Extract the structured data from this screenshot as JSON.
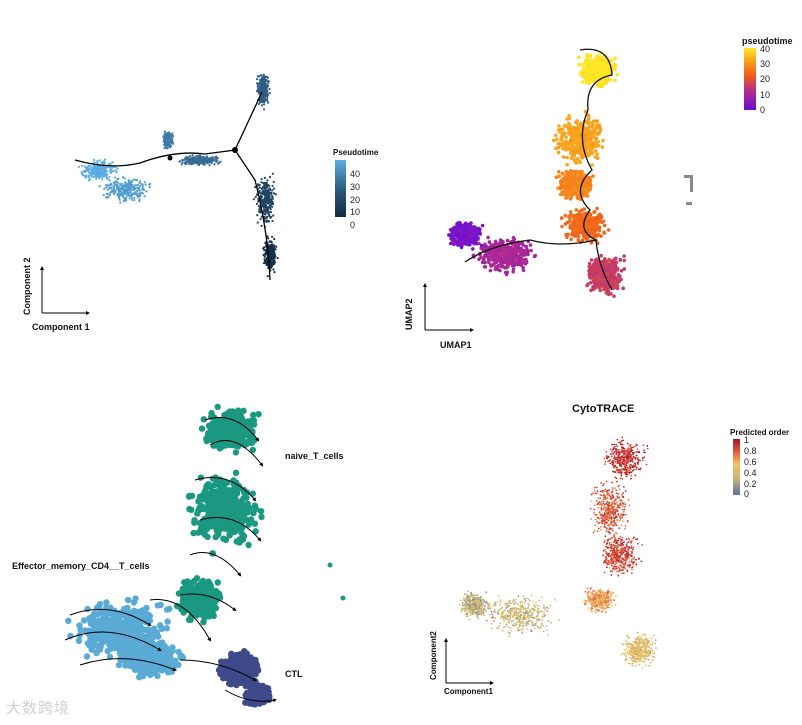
{
  "watermark": "大数跨境",
  "chart_data": [
    {
      "type": "scatter",
      "panel": "monocle-trajectory",
      "xlabel": "Component 1",
      "ylabel": "Component 2",
      "legend": {
        "title": "Pseudotime",
        "ticks": [
          "40",
          "30",
          "20",
          "10",
          "0"
        ],
        "colors": [
          "#5aaee4",
          "#2d5c82",
          "#132b43"
        ],
        "placement": "right"
      },
      "trajectory": "branched tree with three branches",
      "clusters": [
        {
          "x": 100,
          "y": 170,
          "value": 40
        },
        {
          "x": 125,
          "y": 190,
          "value": 36
        },
        {
          "x": 168,
          "y": 140,
          "value": 28
        },
        {
          "x": 200,
          "y": 160,
          "value": 24
        },
        {
          "x": 263,
          "y": 90,
          "value": 20
        },
        {
          "x": 265,
          "y": 200,
          "value": 10
        },
        {
          "x": 270,
          "y": 255,
          "value": 2
        }
      ]
    },
    {
      "type": "scatter",
      "panel": "umap-pseudotime",
      "xlabel": "UMAP1",
      "ylabel": "UMAP2",
      "legend": {
        "title": "pseudotime",
        "ticks": [
          "40",
          "30",
          "20",
          "10",
          "0"
        ],
        "colors": [
          "#fde725",
          "#f9a41e",
          "#ed5b1a",
          "#b12a90",
          "#6b0fd4"
        ],
        "placement": "top-right"
      },
      "clusters": [
        {
          "x": 598,
          "y": 70,
          "value": 40
        },
        {
          "x": 580,
          "y": 140,
          "value": 30
        },
        {
          "x": 575,
          "y": 185,
          "value": 26
        },
        {
          "x": 585,
          "y": 225,
          "value": 22
        },
        {
          "x": 605,
          "y": 275,
          "value": 14
        },
        {
          "x": 505,
          "y": 255,
          "value": 9
        },
        {
          "x": 465,
          "y": 235,
          "value": 2
        }
      ]
    },
    {
      "type": "scatter",
      "panel": "rna-velocity-stream",
      "annotations": [
        "naive_T_cells",
        "Effector_memory_CD4__T_cells",
        "CTL"
      ],
      "series": [
        {
          "name": "naive_T_cells",
          "color": "#1a9882"
        },
        {
          "name": "Effector_memory_CD4__T_cells",
          "color": "#5aaad6"
        },
        {
          "name": "CTL",
          "color": "#3e4a8a"
        }
      ]
    },
    {
      "type": "scatter",
      "panel": "cytotrace",
      "title": "CytoTRACE",
      "xlabel": "Component1",
      "ylabel": "Component2",
      "legend": {
        "title": "Predicted order",
        "ticks": [
          "1",
          "0.8",
          "0.6",
          "0.4",
          "0.2",
          "0"
        ],
        "colors": [
          "#a50f26",
          "#e0503a",
          "#f2c45e",
          "#c8b67a",
          "#5d6fa0"
        ],
        "placement": "top-right"
      }
    }
  ]
}
